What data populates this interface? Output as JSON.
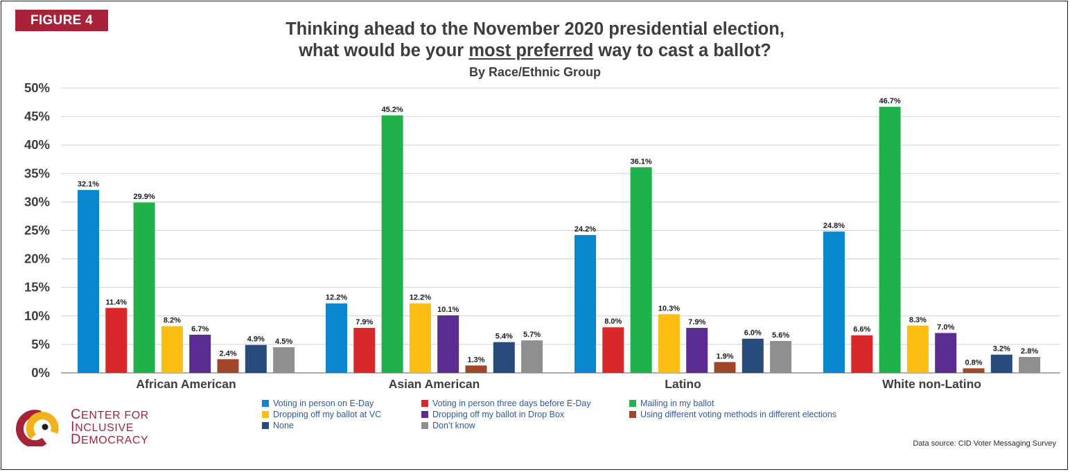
{
  "figure_label": "FIGURE 4",
  "title_line1": "Thinking ahead to the November 2020 presidential election,",
  "title_line2_pre": "what would be your ",
  "title_line2_underlined": "most preferred",
  "title_line2_post": " way to cast a ballot?",
  "subtitle": "By Race/Ethnic Group",
  "logo": {
    "line1": "Center for",
    "line2": "Inclusive",
    "line3": "Democracy",
    "colors": {
      "maroon": "#a8233a",
      "gold": "#f2b21b"
    }
  },
  "source": "Data source: CID Voter Messaging Survey",
  "chart_data": {
    "type": "bar",
    "ylim": [
      0,
      50
    ],
    "y_ticks": [
      "0%",
      "5%",
      "10%",
      "15%",
      "20%",
      "25%",
      "30%",
      "35%",
      "40%",
      "45%",
      "50%"
    ],
    "grid": true,
    "legend_position": "bottom",
    "categories": [
      "African American",
      "Asian American",
      "Latino",
      "White non-Latino"
    ],
    "series": [
      {
        "name": "Voting in person on E-Day",
        "color": "#0a86cf",
        "values": [
          32.1,
          12.2,
          24.2,
          24.8
        ],
        "labels": [
          "32.1%",
          "12.2%",
          "24.2%",
          "24.8%"
        ]
      },
      {
        "name": "Voting in person three days before E-Day",
        "color": "#d9282a",
        "values": [
          11.4,
          7.9,
          8.0,
          6.6
        ],
        "labels": [
          "11.4%",
          "7.9%",
          "8.0%",
          "6.6%"
        ]
      },
      {
        "name": "Mailing in my ballot",
        "color": "#1fb24a",
        "values": [
          29.9,
          45.2,
          36.1,
          46.7
        ],
        "labels": [
          "29.9%",
          "45.2%",
          "36.1%",
          "46.7%"
        ]
      },
      {
        "name": "Dropping off my ballot at VC",
        "color": "#fbbd12",
        "values": [
          8.2,
          12.2,
          10.3,
          8.3
        ],
        "labels": [
          "8.2%",
          "12.2%",
          "10.3%",
          "8.3%"
        ]
      },
      {
        "name": "Dropping off my ballot in Drop Box",
        "color": "#5b2d90",
        "values": [
          6.7,
          10.1,
          7.9,
          7.0
        ],
        "labels": [
          "6.7%",
          "10.1%",
          "7.9%",
          "7.0%"
        ]
      },
      {
        "name": "Using different voting methods in different elections",
        "color": "#a0462a",
        "values": [
          2.4,
          1.3,
          1.9,
          0.8
        ],
        "labels": [
          "2.4%",
          "1.3%",
          "1.9%",
          "0.8%"
        ]
      },
      {
        "name": "None",
        "color": "#274b7a",
        "values": [
          4.9,
          5.4,
          6.0,
          3.2
        ],
        "labels": [
          "4.9%",
          "5.4%",
          "6.0%",
          "3.2%"
        ]
      },
      {
        "name": "Don’t know",
        "color": "#8f8f8f",
        "values": [
          4.5,
          5.7,
          5.6,
          2.8
        ],
        "labels": [
          "4.5%",
          "5.7%",
          "5.6%",
          "2.8%"
        ]
      }
    ]
  }
}
